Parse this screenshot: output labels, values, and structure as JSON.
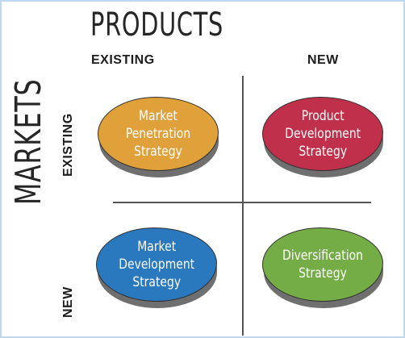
{
  "titles": {
    "products": "PRODUCTS",
    "markets": "MARKETS"
  },
  "columns": {
    "existing": "EXISTING",
    "new": "NEW"
  },
  "rows": {
    "existing": "EXISTING",
    "new": "NEW"
  },
  "quadrants": {
    "top_left": {
      "label": "Market\nPenetration\nStrategy",
      "color": "#e0a03a"
    },
    "top_right": {
      "label": "Product\nDevelopment\nStrategy",
      "color": "#c0304a"
    },
    "bottom_left": {
      "label": "Market\nDevelopment\nStrategy",
      "color": "#2a78bd"
    },
    "bottom_right": {
      "label": "Diversification\nStrategy",
      "color": "#74ad45"
    }
  },
  "colors": {
    "frame_border": "#bcd8f3",
    "text": "#262626"
  }
}
